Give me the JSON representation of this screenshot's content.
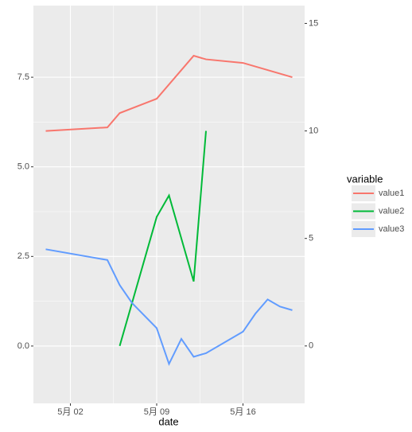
{
  "chart_data": {
    "type": "line",
    "xlabel": "date",
    "xlim": [
      "04-29",
      "05-21"
    ],
    "xticks": [
      {
        "value": "05-02",
        "label": "5月 02"
      },
      {
        "value": "05-09",
        "label": "5月 09"
      },
      {
        "value": "05-16",
        "label": "5月 16"
      }
    ],
    "ylim": [
      -1.6,
      9.5
    ],
    "yticks": [
      {
        "value": 0,
        "label": "0.0"
      },
      2.5,
      {
        "value": 5,
        "label": "5.0"
      },
      7.5
    ],
    "y2lim": [
      -2.67,
      15.83
    ],
    "y2ticks": [
      0,
      5,
      10,
      15
    ],
    "grid": true,
    "legend_title": "variable",
    "legend": "right",
    "series": [
      {
        "name": "value1",
        "color": "#F8766D",
        "x": [
          "04-30",
          "05-05",
          "05-06",
          "05-09",
          "05-12",
          "05-13",
          "05-16",
          "05-18",
          "05-20"
        ],
        "values": [
          6.0,
          6.1,
          6.5,
          6.9,
          8.1,
          8.0,
          7.9,
          7.7,
          7.5
        ]
      },
      {
        "name": "value2",
        "color": "#00BA38",
        "axis": "y2",
        "x": [
          "05-06",
          "05-09",
          "05-10",
          "05-12",
          "05-13"
        ],
        "values": [
          0,
          6.0,
          7.0,
          3.0,
          10.0
        ]
      },
      {
        "name": "value3",
        "color": "#619CFF",
        "x": [
          "04-30",
          "05-05",
          "05-06",
          "05-07",
          "05-09",
          "05-10",
          "05-11",
          "05-12",
          "05-13",
          "05-16",
          "05-17",
          "05-18",
          "05-19",
          "05-20"
        ],
        "values": [
          2.7,
          2.4,
          1.7,
          1.2,
          0.5,
          -0.5,
          0.2,
          -0.3,
          -0.2,
          0.4,
          0.9,
          1.3,
          1.1,
          1.0
        ]
      }
    ]
  }
}
